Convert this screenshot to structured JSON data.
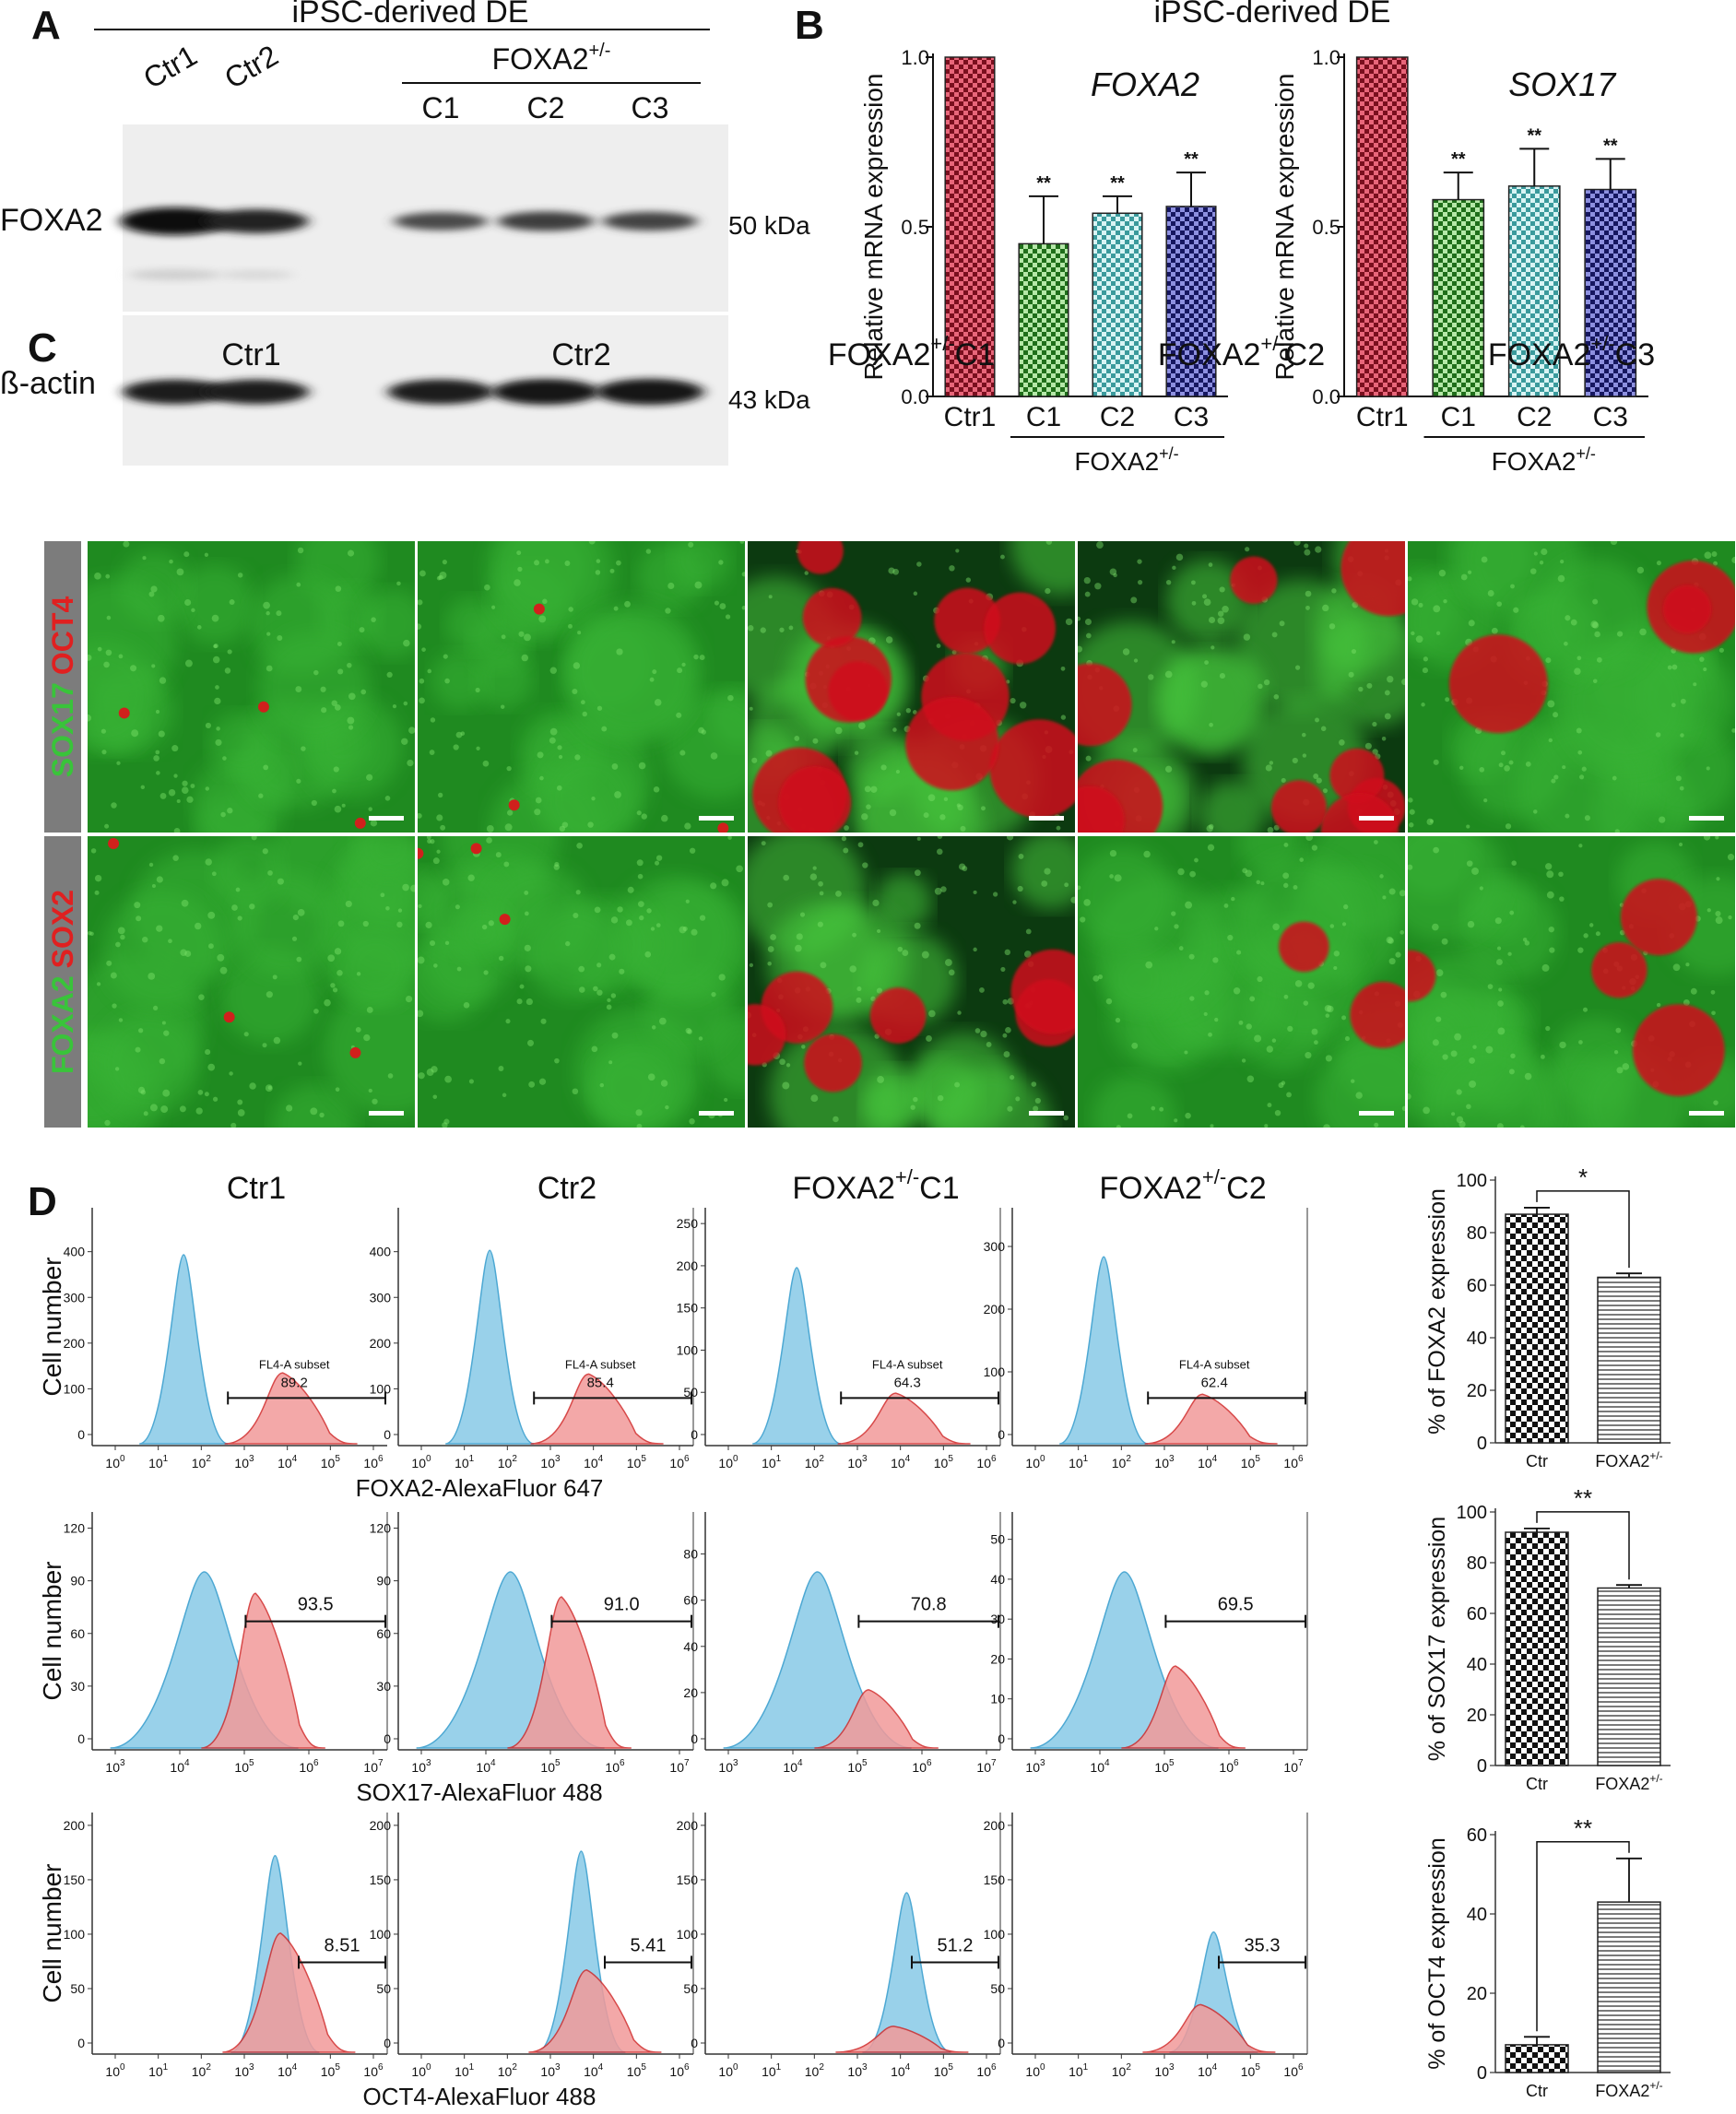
{
  "panel_letters": {
    "a": "A",
    "b": "B",
    "c": "C",
    "d": "D"
  },
  "panelA": {
    "header": "iPSC-derived DE",
    "group_label": "FOXA2",
    "group_sup": "+/-",
    "lanes": [
      "Ctr1",
      "Ctr2",
      "C1",
      "C2",
      "C3"
    ],
    "rows": [
      {
        "name": "FOXA2",
        "mw": "50 kDa",
        "intensity": [
          1.0,
          0.75,
          0.35,
          0.45,
          0.4
        ]
      },
      {
        "name": "ß-actin",
        "mw": "43 kDa",
        "intensity": [
          0.8,
          0.8,
          0.82,
          0.88,
          0.9
        ]
      }
    ]
  },
  "panelB": {
    "header": "iPSC-derived DE",
    "ylabel": "Relative mRNA expression",
    "group_label": "FOXA2",
    "group_sup": "+/-",
    "sig": "**"
  },
  "panelC": {
    "columns": [
      "Ctr1",
      "Ctr2",
      "C1",
      "C2",
      "C3"
    ],
    "column_prefix": "FOXA2",
    "column_sup": "+/-",
    "rows": [
      {
        "green": "SOX17",
        "red": "OCT4",
        "red_fraction": [
          0.01,
          0.01,
          0.55,
          0.45,
          0.15
        ]
      },
      {
        "green": "FOXA2",
        "red": "SOX2",
        "red_fraction": [
          0.01,
          0.01,
          0.3,
          0.1,
          0.2
        ]
      }
    ]
  },
  "panelD": {
    "columns": [
      "Ctr1",
      "Ctr2",
      "C1",
      "C2"
    ],
    "column_prefix": "FOXA2",
    "column_sup": "+/-",
    "ylabel": "Cell number",
    "gate_subset_label": "FL4-A subset",
    "rows": [
      {
        "xlabel": "FOXA2-AlexaFluor 647",
        "gates": [
          "89.2",
          "85.4",
          "64.3",
          "62.4"
        ]
      },
      {
        "xlabel": "SOX17-AlexaFluor 488",
        "gates": [
          "93.5",
          "91.0",
          "70.8",
          "69.5"
        ]
      },
      {
        "xlabel": "OCT4-AlexaFluor 488",
        "gates": [
          "8.51",
          "5.41",
          "51.2",
          "35.3"
        ]
      }
    ],
    "bar_xlabels": [
      "Ctr",
      "FOXA2"
    ]
  },
  "chart_data": [
    {
      "type": "bar",
      "title": "FOXA2",
      "ylabel": "Relative mRNA expression",
      "categories": [
        "Ctr1",
        "C1",
        "C2",
        "C3"
      ],
      "values": [
        1.0,
        0.45,
        0.54,
        0.56
      ],
      "errors": [
        0,
        0.14,
        0.05,
        0.1
      ],
      "significance": [
        "",
        "**",
        "**",
        "**"
      ],
      "ylim": [
        0,
        1.0
      ],
      "yticks": [
        "0.0",
        "0.5",
        "1.0"
      ],
      "colors": [
        "#c8223f",
        "#3aa636",
        "#63c5c6",
        "#2b2e9a"
      ]
    },
    {
      "type": "bar",
      "title": "SOX17",
      "ylabel": "Relative mRNA expression",
      "categories": [
        "Ctr1",
        "C1",
        "C2",
        "C3"
      ],
      "values": [
        1.0,
        0.58,
        0.62,
        0.61
      ],
      "errors": [
        0,
        0.08,
        0.11,
        0.09
      ],
      "significance": [
        "",
        "**",
        "**",
        "**"
      ],
      "ylim": [
        0,
        1.0
      ],
      "yticks": [
        "0.0",
        "0.5",
        "1.0"
      ],
      "colors": [
        "#c8223f",
        "#3aa636",
        "#63c5c6",
        "#2b2e9a"
      ]
    },
    {
      "type": "bar",
      "ylabel": "% of FOXA2 expression",
      "categories": [
        "Ctr",
        "FOXA2+/-"
      ],
      "values": [
        87,
        63
      ],
      "errors": [
        2.5,
        1.5
      ],
      "significance": "*",
      "ylim": [
        0,
        100
      ],
      "yticks": [
        "0",
        "20",
        "40",
        "60",
        "80",
        "100"
      ]
    },
    {
      "type": "bar",
      "ylabel": "% of SOX17 expression",
      "categories": [
        "Ctr",
        "FOXA2+/-"
      ],
      "values": [
        92,
        70
      ],
      "errors": [
        1.5,
        1.2
      ],
      "significance": "**",
      "ylim": [
        0,
        100
      ],
      "yticks": [
        "0",
        "20",
        "40",
        "60",
        "80",
        "100"
      ]
    },
    {
      "type": "bar",
      "ylabel": "% of OCT4 expression",
      "categories": [
        "Ctr",
        "FOXA2+/-"
      ],
      "values": [
        7,
        43
      ],
      "errors": [
        2,
        11
      ],
      "significance": "**",
      "ylim": [
        0,
        60
      ],
      "yticks": [
        "0",
        "20",
        "40",
        "60"
      ]
    }
  ]
}
